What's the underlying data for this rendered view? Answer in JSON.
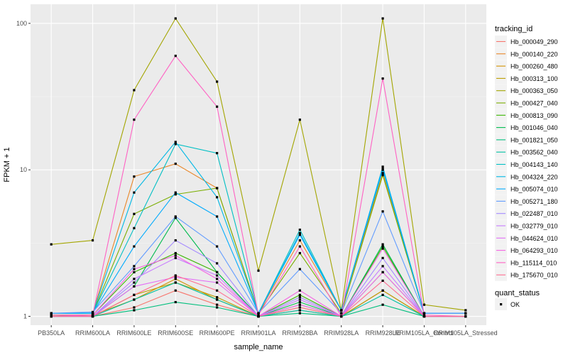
{
  "chart_data": {
    "type": "line",
    "xlabel": "sample_name",
    "ylabel": "FPKM + 1",
    "y_scale": "log10",
    "ylim": [
      0.87,
      135
    ],
    "y_ticks": [
      1,
      10,
      100
    ],
    "y_tick_labels": [
      "1",
      "10",
      "100"
    ],
    "grid": true,
    "legend_position": "right",
    "categories": [
      "PB350LA",
      "RRIM600LA",
      "RRIM600LE",
      "RRIM600SE",
      "RRIM600PE",
      "RRIM901LA",
      "RRIM928BA",
      "RRIM928LA",
      "RRIM928LE",
      "RRIM105LA_Control",
      "RRIM105LA_Stressed"
    ],
    "legend_title": "tracking_id",
    "shape_legend_title": "quant_status",
    "shape_legend_items": [
      "OK"
    ],
    "series": [
      {
        "name": "Hb_000049_290",
        "color": "#F8766D",
        "values": [
          1.02,
          1.0,
          1.15,
          1.5,
          1.2,
          1.0,
          1.1,
          1.0,
          1.5,
          1.0,
          1.0
        ]
      },
      {
        "name": "Hb_000140_220",
        "color": "#E98627",
        "values": [
          1.05,
          1.05,
          9.0,
          11.0,
          7.5,
          1.05,
          3.3,
          1.1,
          9.5,
          1.05,
          1.05
        ]
      },
      {
        "name": "Hb_000260_480",
        "color": "#D49200",
        "values": [
          1.02,
          1.02,
          1.3,
          1.8,
          1.3,
          1.0,
          1.2,
          1.0,
          2.0,
          1.0,
          1.0
        ]
      },
      {
        "name": "Hb_000313_100",
        "color": "#BB9D00",
        "values": [
          1.0,
          1.0,
          1.4,
          1.7,
          1.35,
          1.0,
          1.15,
          1.0,
          1.5,
          1.0,
          1.0
        ]
      },
      {
        "name": "Hb_000363_050",
        "color": "#A3A500",
        "values": [
          3.1,
          3.3,
          35.0,
          108.0,
          40.0,
          2.05,
          22.0,
          1.1,
          108.0,
          1.2,
          1.1
        ]
      },
      {
        "name": "Hb_000427_040",
        "color": "#7AAE00",
        "values": [
          1.05,
          1.05,
          5.0,
          6.8,
          7.5,
          1.05,
          2.7,
          1.05,
          9.2,
          1.05,
          1.05
        ]
      },
      {
        "name": "Hb_000813_090",
        "color": "#39B600",
        "values": [
          1.02,
          1.02,
          2.0,
          2.7,
          2.0,
          1.0,
          1.4,
          1.0,
          3.0,
          1.0,
          1.0
        ]
      },
      {
        "name": "Hb_001046_040",
        "color": "#00BB4E",
        "values": [
          1.0,
          1.0,
          1.6,
          4.7,
          2.0,
          1.0,
          1.25,
          1.0,
          3.1,
          1.0,
          1.0
        ]
      },
      {
        "name": "Hb_001821_050",
        "color": "#00BF7D",
        "values": [
          1.0,
          1.0,
          1.1,
          1.25,
          1.15,
          1.0,
          1.05,
          1.0,
          1.2,
          1.0,
          1.0
        ]
      },
      {
        "name": "Hb_003562_040",
        "color": "#00C1A3",
        "values": [
          1.0,
          1.0,
          1.3,
          1.7,
          1.3,
          1.0,
          1.1,
          1.0,
          1.4,
          1.0,
          1.0
        ]
      },
      {
        "name": "Hb_004143_140",
        "color": "#00BFC4",
        "values": [
          1.05,
          1.05,
          4.0,
          15.0,
          13.0,
          1.05,
          3.9,
          1.1,
          10.0,
          1.05,
          1.05
        ]
      },
      {
        "name": "Hb_004324_220",
        "color": "#00B8E5",
        "values": [
          1.05,
          1.05,
          7.0,
          15.5,
          6.5,
          1.05,
          3.7,
          1.1,
          10.5,
          1.05,
          1.05
        ]
      },
      {
        "name": "Hb_005074_010",
        "color": "#00ABFD",
        "values": [
          1.05,
          1.05,
          3.0,
          7.0,
          4.8,
          1.05,
          3.6,
          1.1,
          10.2,
          1.05,
          1.05
        ]
      },
      {
        "name": "Hb_005271_180",
        "color": "#619CFF",
        "values": [
          1.05,
          1.07,
          2.2,
          4.8,
          3.0,
          1.05,
          2.1,
          1.05,
          5.2,
          1.05,
          1.05
        ]
      },
      {
        "name": "Hb_022487_010",
        "color": "#A58AFF",
        "values": [
          1.0,
          1.0,
          1.7,
          3.3,
          2.3,
          1.0,
          1.35,
          1.0,
          2.5,
          1.0,
          1.0
        ]
      },
      {
        "name": "Hb_032779_010",
        "color": "#C77CFF",
        "values": [
          1.0,
          1.0,
          1.8,
          2.5,
          1.9,
          1.0,
          1.3,
          1.0,
          2.2,
          1.0,
          1.0
        ]
      },
      {
        "name": "Hb_044624_010",
        "color": "#E36EF6",
        "values": [
          1.0,
          1.0,
          1.6,
          1.85,
          1.7,
          1.0,
          1.2,
          1.0,
          2.0,
          1.0,
          1.0
        ]
      },
      {
        "name": "Hb_064293_010",
        "color": "#F564E3",
        "values": [
          1.0,
          1.02,
          2.1,
          2.6,
          1.8,
          1.0,
          1.5,
          1.0,
          2.9,
          1.0,
          1.0
        ]
      },
      {
        "name": "Hb_115114_010",
        "color": "#FF61C3",
        "values": [
          1.02,
          1.02,
          22.0,
          60.0,
          27.0,
          1.02,
          3.0,
          1.0,
          42.0,
          1.02,
          1.0
        ]
      },
      {
        "name": "Hb_175670_010",
        "color": "#FF6C91",
        "values": [
          1.0,
          1.0,
          1.4,
          1.9,
          1.5,
          1.0,
          1.15,
          1.0,
          1.75,
          1.0,
          1.0
        ]
      }
    ]
  }
}
